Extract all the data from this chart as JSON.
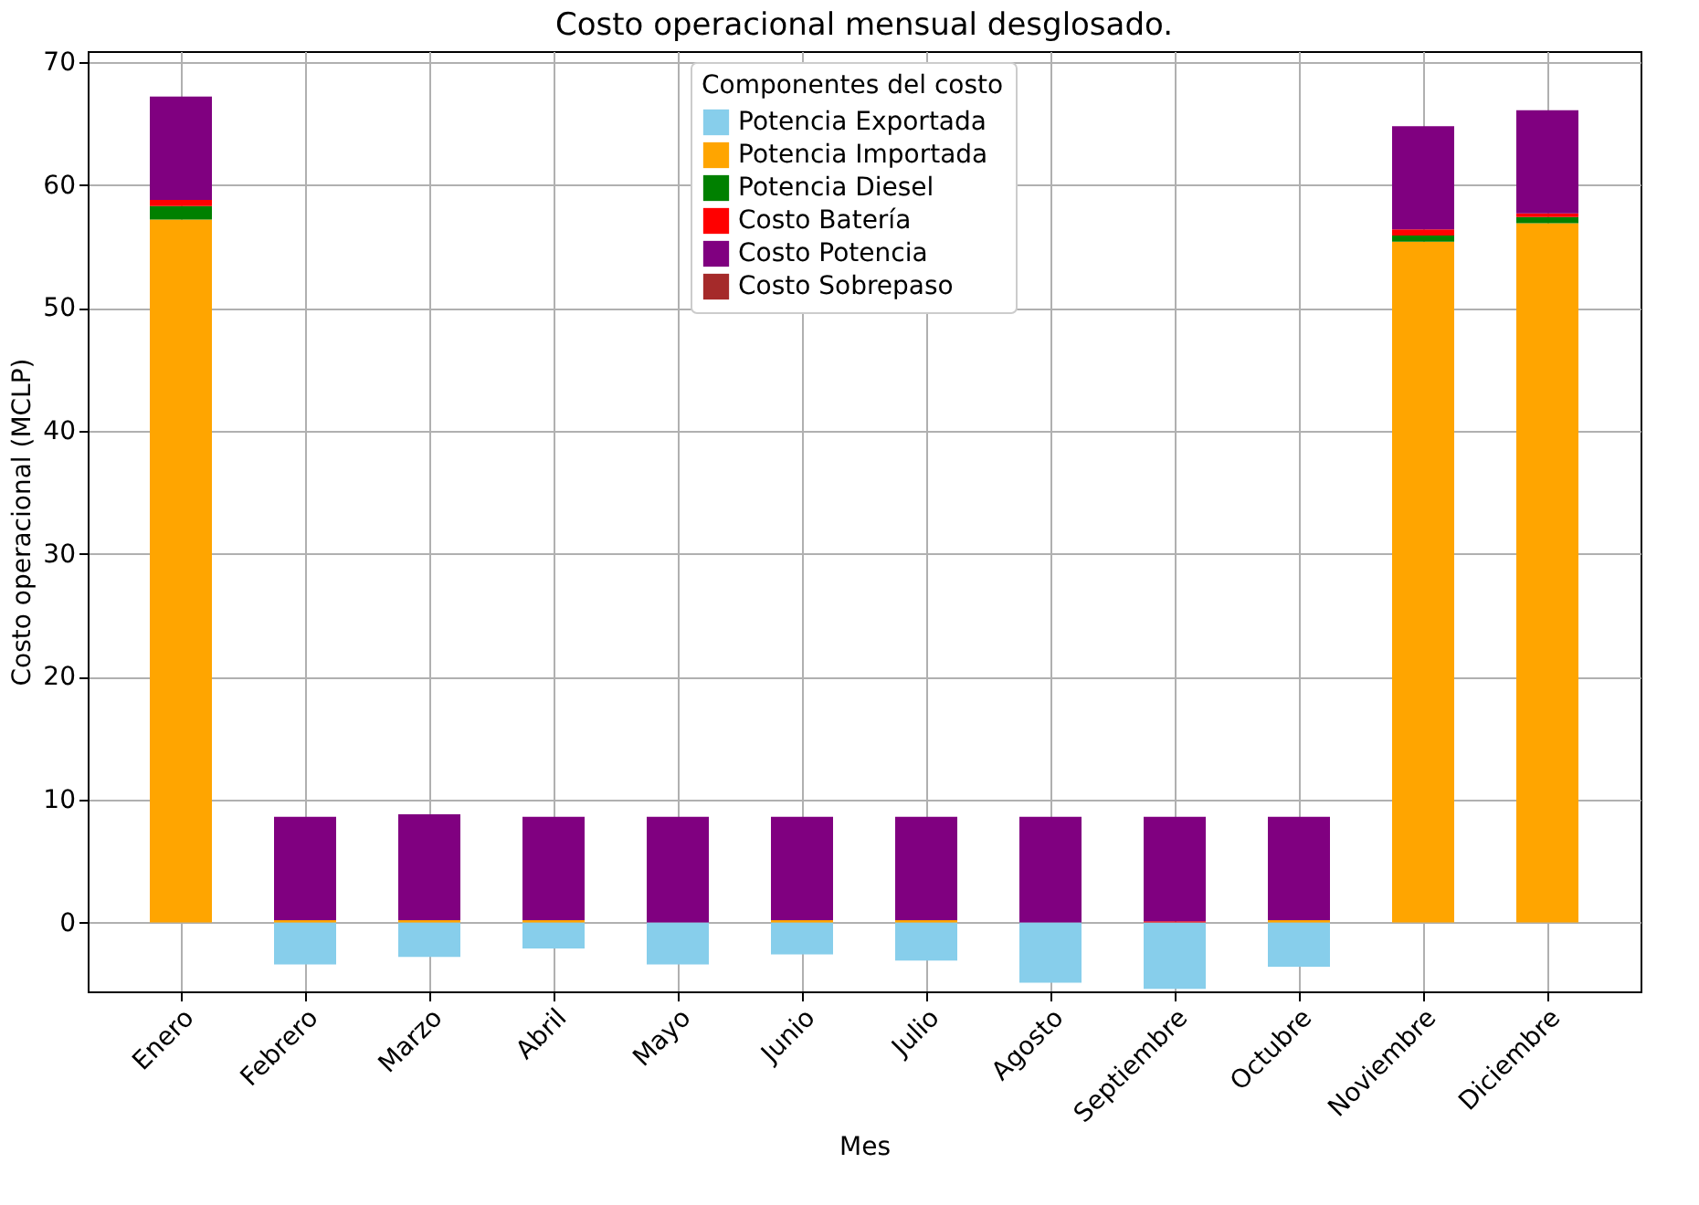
{
  "chart_data": {
    "type": "bar",
    "stacked": true,
    "title": "Costo operacional mensual desglosado.",
    "xlabel": "Mes",
    "ylabel": "Costo operacional (MCLP)",
    "legend_title": "Componentes del costo",
    "legend": "top",
    "grid": true,
    "categories": [
      "Enero",
      "Febrero",
      "Marzo",
      "Abril",
      "Mayo",
      "Junio",
      "Julio",
      "Agosto",
      "Septiembre",
      "Octubre",
      "Noviembre",
      "Diciembre"
    ],
    "ylim": [
      -5.6,
      70.9
    ],
    "yticks": [
      0,
      10,
      20,
      30,
      40,
      50,
      60,
      70
    ],
    "series": [
      {
        "name": "Potencia Exportada",
        "color": "#87ceeb",
        "values": [
          0,
          -3.4,
          -2.8,
          -2.1,
          -3.4,
          -2.6,
          -3.1,
          -4.9,
          -5.4,
          -3.6,
          0,
          0
        ]
      },
      {
        "name": "Potencia Importada",
        "color": "#ffa500",
        "values": [
          57.2,
          0.2,
          0.2,
          0.2,
          0,
          0.2,
          0.2,
          0,
          0,
          0.2,
          55.4,
          56.9
        ]
      },
      {
        "name": "Potencia Diesel",
        "color": "#008000",
        "values": [
          1.1,
          0,
          0,
          0,
          0,
          0,
          0,
          0,
          0,
          0,
          0.5,
          0.5
        ]
      },
      {
        "name": "Costo Batería",
        "color": "#ff0000",
        "values": [
          0.5,
          0,
          0,
          0,
          0,
          0,
          0,
          0,
          0.1,
          0,
          0.5,
          0.3
        ]
      },
      {
        "name": "Costo Potencia",
        "color": "#800080",
        "values": [
          8.4,
          8.4,
          8.6,
          8.4,
          8.6,
          8.4,
          8.4,
          8.6,
          8.5,
          8.4,
          8.4,
          8.4
        ]
      },
      {
        "name": "Costo Sobrepaso",
        "color": "#a52a2a",
        "values": [
          0,
          0,
          0,
          0,
          0,
          0,
          0,
          0,
          0,
          0,
          0,
          0
        ]
      }
    ]
  }
}
